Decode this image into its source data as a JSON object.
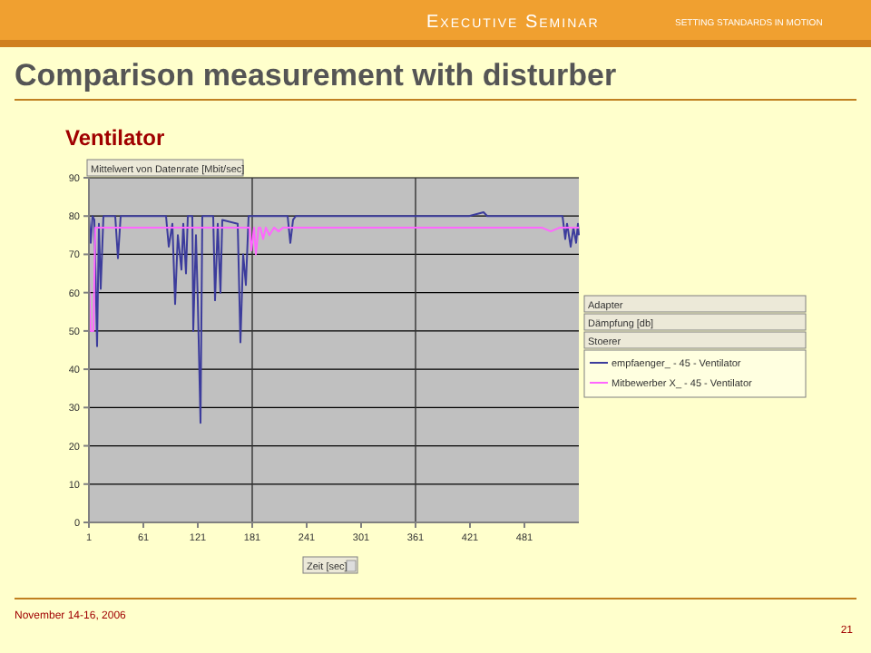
{
  "chart_data": {
    "type": "line",
    "title": "Comparison measurement with disturber",
    "subtitle": "Ventilator",
    "ylabel": "Mittelwert von Datenrate [Mbit/sec]",
    "xlabel": "Zeit [sec]",
    "annotations": [
      "Executive Seminar",
      "SETTING STANDARDS IN MOTION",
      "Adapter",
      "Dämpfung [db]",
      "Stoerer",
      "November 14-16, 2006",
      "21"
    ],
    "xlim": [
      1,
      541
    ],
    "xticks": [
      1,
      61,
      121,
      181,
      241,
      301,
      361,
      421,
      481
    ],
    "ylim": [
      0,
      90
    ],
    "yticks": [
      0,
      10,
      20,
      30,
      40,
      50,
      60,
      70,
      80,
      90
    ],
    "grid": "y",
    "ref_lines": [
      {
        "axis": "x",
        "value": 181,
        "color": "#333333"
      },
      {
        "axis": "x",
        "value": 361,
        "color": "#333333"
      }
    ],
    "legend": "right",
    "line_style": "solid",
    "marker": "none",
    "series": [
      {
        "name": "empfaenger_ - 45 - Ventilator",
        "color": "#3c3c9c",
        "x": [
          1,
          3,
          5,
          7,
          10,
          12,
          14,
          17,
          30,
          33,
          36,
          60,
          86,
          89,
          93,
          96,
          99,
          103,
          105,
          108,
          110,
          115,
          116,
          119,
          121,
          124,
          126,
          138,
          140,
          143,
          146,
          148,
          165,
          168,
          171,
          174,
          177,
          196,
          220,
          223,
          226,
          229,
          260,
          300,
          340,
          380,
          420,
          436,
          440,
          480,
          523,
          526,
          528,
          532,
          535,
          538,
          540,
          541
        ],
        "values": [
          80,
          73,
          80,
          79,
          46,
          78,
          61,
          80,
          80,
          69,
          80,
          80,
          80,
          72,
          78,
          57,
          75,
          66,
          78,
          65,
          80,
          80,
          50,
          75,
          58,
          26,
          80,
          80,
          58,
          78,
          60,
          79,
          78,
          47,
          70,
          62,
          80,
          80,
          80,
          73,
          79,
          80,
          80,
          80,
          80,
          80,
          80,
          81,
          80,
          80,
          80,
          74,
          78,
          72,
          77,
          73,
          78,
          75
        ]
      },
      {
        "name": "Mitbewerber X_ - 45 - Ventilator",
        "color": "#ff66ff",
        "x": [
          1,
          3,
          6,
          8,
          10,
          60,
          120,
          178,
          180,
          183,
          185,
          188,
          190,
          193,
          196,
          200,
          205,
          210,
          215,
          220,
          300,
          400,
          500,
          510,
          520,
          530,
          541
        ],
        "values": [
          64,
          50,
          50,
          77,
          77,
          77,
          77,
          77,
          71,
          77,
          70,
          77,
          77,
          74,
          77,
          75,
          77,
          76,
          77,
          77,
          77,
          77,
          77,
          76,
          77,
          77,
          77
        ]
      }
    ]
  }
}
